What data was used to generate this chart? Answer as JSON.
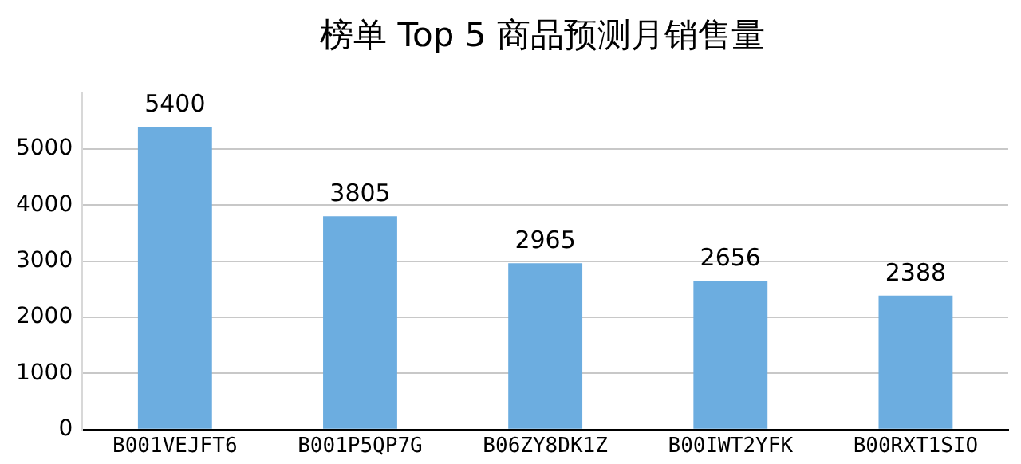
{
  "chart_data": {
    "type": "bar",
    "title": "榜单 Top 5 商品预测月销售量",
    "categories": [
      "B001VEJFT6",
      "B001P5QP7G",
      "B06ZY8DK1Z",
      "B00IWT2YFK",
      "B00RXT1SIO"
    ],
    "values": [
      5400,
      3805,
      2965,
      2656,
      2388
    ],
    "color": "#6cade0",
    "ylim": [
      0,
      6000
    ],
    "yticks": [
      0,
      1000,
      2000,
      3000,
      4000,
      5000
    ],
    "grid": "y",
    "data_labels": true
  }
}
